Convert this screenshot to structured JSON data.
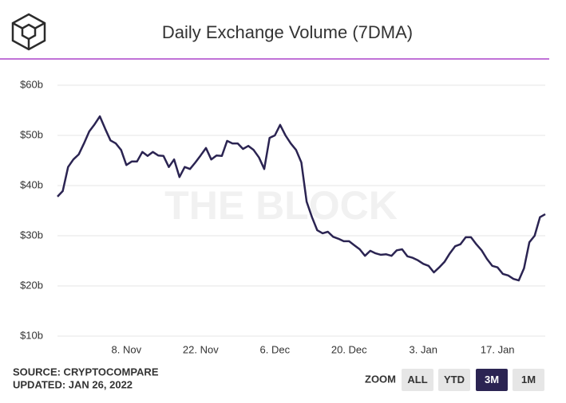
{
  "chart_data": {
    "type": "line",
    "title": "Daily Exchange Volume (7DMA)",
    "watermark": "THE BLOCK",
    "source": "SOURCE: CRYPTOCOMPARE",
    "updated": "UPDATED: JAN 26, 2022",
    "zoom_label": "ZOOM",
    "zoom_buttons": [
      "ALL",
      "YTD",
      "3M",
      "1M"
    ],
    "zoom_selected": "3M",
    "color": "#2b2452",
    "grid": true,
    "ylim": [
      10,
      60
    ],
    "yticks": [
      {
        "value": 10,
        "label": "$10b"
      },
      {
        "value": 20,
        "label": "$20b"
      },
      {
        "value": 30,
        "label": "$30b"
      },
      {
        "value": 40,
        "label": "$40b"
      },
      {
        "value": 50,
        "label": "$50b"
      },
      {
        "value": 60,
        "label": "$60b"
      }
    ],
    "categories": [
      null,
      null,
      null,
      null,
      null,
      null,
      null,
      null,
      null,
      null,
      null,
      null,
      null,
      "8. Nov",
      null,
      null,
      null,
      null,
      null,
      null,
      null,
      null,
      null,
      null,
      null,
      null,
      null,
      "22. Nov",
      null,
      null,
      null,
      null,
      null,
      null,
      null,
      null,
      null,
      null,
      null,
      null,
      null,
      "6. Dec",
      null,
      null,
      null,
      null,
      null,
      null,
      null,
      null,
      null,
      null,
      null,
      null,
      null,
      "20. Dec",
      null,
      null,
      null,
      null,
      null,
      null,
      null,
      null,
      null,
      null,
      null,
      null,
      null,
      "3. Jan",
      null,
      null,
      null,
      null,
      null,
      null,
      null,
      null,
      null,
      null,
      null,
      null,
      null,
      "17. Jan",
      null,
      null,
      null,
      null,
      null,
      null,
      null,
      null,
      null
    ],
    "values": [
      37.8,
      38.9,
      43.7,
      45.2,
      46.2,
      48.4,
      50.8,
      52.2,
      53.8,
      51.3,
      49.0,
      48.4,
      47.1,
      44.1,
      44.8,
      44.8,
      46.7,
      45.9,
      46.7,
      46.0,
      45.9,
      43.7,
      45.2,
      41.7,
      43.7,
      43.3,
      44.6,
      46.0,
      47.5,
      45.2,
      46.0,
      45.9,
      48.9,
      48.4,
      48.4,
      47.3,
      47.9,
      47.1,
      45.6,
      43.3,
      49.5,
      50.0,
      52.1,
      50.0,
      48.4,
      47.1,
      44.6,
      36.8,
      33.7,
      31.1,
      30.5,
      30.8,
      29.8,
      29.4,
      28.9,
      28.9,
      28.1,
      27.3,
      26.0,
      27.0,
      26.5,
      26.2,
      26.3,
      26.0,
      27.1,
      27.3,
      25.9,
      25.6,
      25.1,
      24.4,
      24.0,
      22.7,
      23.7,
      24.8,
      26.5,
      27.9,
      28.3,
      29.7,
      29.7,
      28.3,
      27.1,
      25.4,
      24.0,
      23.7,
      22.4,
      22.1,
      21.4,
      21.1,
      23.5,
      28.7,
      30.0,
      33.7,
      34.3
    ]
  }
}
